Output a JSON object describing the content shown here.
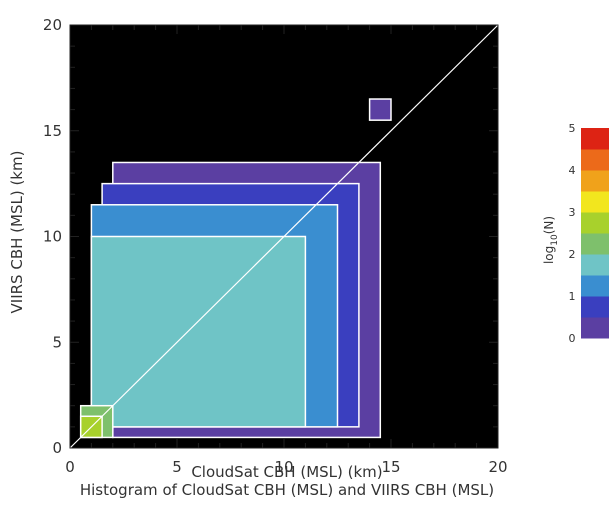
{
  "chart_data": {
    "type": "heatmap",
    "title": "Histogram of CloudSat CBH (MSL) and VIIRS CBH (MSL)",
    "xlabel": "CloudSat CBH (MSL) (km)",
    "ylabel": "VIIRS CBH (MSL) (km)",
    "xlim": [
      0,
      20
    ],
    "ylim": [
      0,
      20
    ],
    "x_ticks": [
      "0",
      "5",
      "10",
      "15",
      "20"
    ],
    "y_ticks": [
      "0",
      "5",
      "10",
      "15",
      "20"
    ],
    "one_to_one_line": true,
    "background_color": "#000000",
    "colorbar": {
      "label": "log10(N)",
      "label_base": "log",
      "label_sub": "10",
      "label_arg": "(N)",
      "ticks": [
        "0",
        "1",
        "2",
        "3",
        "4",
        "5"
      ],
      "range": [
        0,
        5
      ],
      "levels": [
        0,
        0.5,
        1,
        1.5,
        2,
        2.5,
        3,
        3.5,
        4,
        4.5
      ],
      "colors": [
        "#5b3fa2",
        "#3a3fbf",
        "#3a8ed0",
        "#6fc4c6",
        "#7ec06c",
        "#a8d12c",
        "#f2e61e",
        "#f0a21b",
        "#ec6a1a",
        "#dd2314"
      ]
    },
    "regions": [
      {
        "level": 0,
        "x": [
          2,
          14.5
        ],
        "y": [
          0.5,
          13.5
        ]
      },
      {
        "level": 1,
        "x": [
          1.5,
          13.5
        ],
        "y": [
          1,
          12.5
        ]
      },
      {
        "level": 2,
        "x": [
          1,
          12.5
        ],
        "y": [
          1,
          11.5
        ]
      },
      {
        "level": 3,
        "x": [
          1,
          11
        ],
        "y": [
          1,
          10
        ]
      },
      {
        "level": 4,
        "x": [
          0.5,
          2
        ],
        "y": [
          0.5,
          2
        ]
      },
      {
        "level": 5,
        "x": [
          0.5,
          1.5
        ],
        "y": [
          0.5,
          1.5
        ]
      },
      {
        "level": 0,
        "x": [
          14,
          15
        ],
        "y": [
          15.5,
          16.5
        ]
      }
    ]
  }
}
